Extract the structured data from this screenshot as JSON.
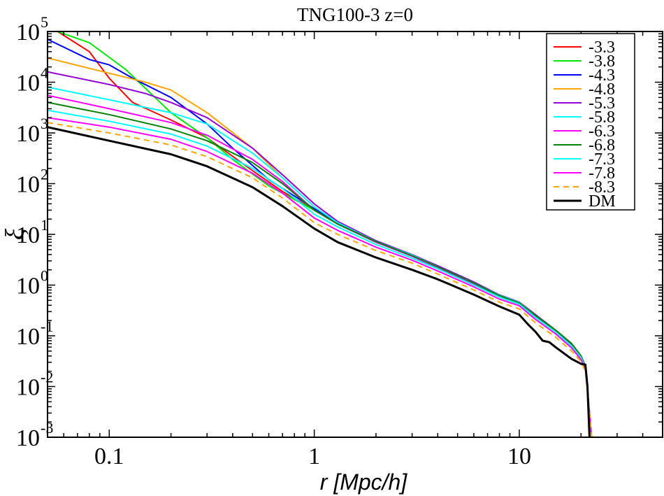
{
  "chart_data": {
    "type": "line",
    "title": "TNG100-3 z=0",
    "xlabel": "r [Mpc/h]",
    "ylabel": "ξ",
    "xscale": "log",
    "yscale": "log",
    "xlim": [
      0.05,
      50
    ],
    "ylim": [
      0.001,
      100000
    ],
    "legend_position": "top-right",
    "x_ticks": [
      {
        "value": 0.1,
        "label": "0.1"
      },
      {
        "value": 1,
        "label": "1"
      },
      {
        "value": 10,
        "label": "10"
      }
    ],
    "y_ticks": [
      {
        "value": 0.001,
        "base": "10",
        "exp": "-3"
      },
      {
        "value": 0.01,
        "base": "10",
        "exp": "-2"
      },
      {
        "value": 0.1,
        "base": "10",
        "exp": "-1"
      },
      {
        "value": 1,
        "base": "10",
        "exp": "0"
      },
      {
        "value": 10,
        "base": "10",
        "exp": "1"
      },
      {
        "value": 100,
        "base": "10",
        "exp": "2"
      },
      {
        "value": 1000,
        "base": "10",
        "exp": "3"
      },
      {
        "value": 10000,
        "base": "10",
        "exp": "4"
      },
      {
        "value": 100000,
        "base": "10",
        "exp": "5"
      }
    ],
    "series": [
      {
        "name": "-3.3",
        "color": "#ff0000",
        "dashed": false,
        "values": [
          [
            0.056,
            100000
          ],
          [
            0.08,
            40000
          ],
          [
            0.1,
            12000
          ],
          [
            0.13,
            4000
          ],
          [
            0.2,
            1800
          ],
          [
            0.3,
            800
          ],
          [
            0.5,
            180
          ],
          [
            0.7,
            70
          ],
          [
            1,
            30
          ],
          [
            1.3,
            16
          ],
          [
            2,
            7
          ],
          [
            3,
            3.8
          ],
          [
            4,
            2.3
          ],
          [
            6,
            1.1
          ],
          [
            8,
            0.62
          ],
          [
            10,
            0.45
          ],
          [
            12,
            0.25
          ],
          [
            15,
            0.13
          ],
          [
            18,
            0.07
          ],
          [
            20,
            0.04
          ],
          [
            21,
            0.025
          ],
          [
            22,
            0.003
          ],
          [
            22.5,
            0.001
          ]
        ]
      },
      {
        "name": "-3.8",
        "color": "#00e600",
        "dashed": false,
        "values": [
          [
            0.056,
            100000
          ],
          [
            0.08,
            60000
          ],
          [
            0.12,
            18000
          ],
          [
            0.2,
            2500
          ],
          [
            0.3,
            800
          ],
          [
            0.4,
            300
          ],
          [
            0.6,
            90
          ],
          [
            1,
            30
          ],
          [
            1.3,
            16
          ],
          [
            2,
            7
          ],
          [
            3,
            3.8
          ],
          [
            4,
            2.3
          ],
          [
            6,
            1.1
          ],
          [
            8,
            0.62
          ],
          [
            10,
            0.45
          ],
          [
            12,
            0.25
          ],
          [
            15,
            0.13
          ],
          [
            18,
            0.07
          ],
          [
            20,
            0.04
          ],
          [
            21,
            0.025
          ],
          [
            22,
            0.003
          ],
          [
            22.5,
            0.001
          ]
        ]
      },
      {
        "name": "-4.3",
        "color": "#0000ff",
        "dashed": false,
        "values": [
          [
            0.05,
            70000
          ],
          [
            0.08,
            28000
          ],
          [
            0.1,
            22000
          ],
          [
            0.13,
            12000
          ],
          [
            0.2,
            5000
          ],
          [
            0.3,
            1500
          ],
          [
            0.4,
            500
          ],
          [
            0.6,
            120
          ],
          [
            1,
            32
          ],
          [
            1.3,
            17
          ],
          [
            2,
            7.2
          ],
          [
            3,
            3.9
          ],
          [
            4,
            2.4
          ],
          [
            6,
            1.15
          ],
          [
            8,
            0.64
          ],
          [
            10,
            0.46
          ],
          [
            12,
            0.26
          ],
          [
            15,
            0.13
          ],
          [
            18,
            0.07
          ],
          [
            20,
            0.04
          ],
          [
            21,
            0.025
          ],
          [
            22,
            0.003
          ],
          [
            22.5,
            0.001
          ]
        ]
      },
      {
        "name": "-4.8",
        "color": "#ffa500",
        "dashed": false,
        "values": [
          [
            0.05,
            30000
          ],
          [
            0.1,
            15000
          ],
          [
            0.15,
            10000
          ],
          [
            0.2,
            7000
          ],
          [
            0.3,
            2500
          ],
          [
            0.5,
            500
          ],
          [
            0.7,
            130
          ],
          [
            1,
            35
          ],
          [
            1.3,
            17
          ],
          [
            2,
            7
          ],
          [
            3,
            3.8
          ],
          [
            4,
            2.3
          ],
          [
            6,
            1.1
          ],
          [
            8,
            0.62
          ],
          [
            10,
            0.45
          ],
          [
            12,
            0.25
          ],
          [
            15,
            0.13
          ],
          [
            18,
            0.07
          ],
          [
            20,
            0.04
          ],
          [
            21,
            0.025
          ],
          [
            22,
            0.003
          ],
          [
            22.5,
            0.001
          ]
        ]
      },
      {
        "name": "-5.3",
        "color": "#9400d3",
        "dashed": false,
        "values": [
          [
            0.05,
            16000
          ],
          [
            0.1,
            9000
          ],
          [
            0.15,
            6000
          ],
          [
            0.2,
            4000
          ],
          [
            0.3,
            2000
          ],
          [
            0.5,
            500
          ],
          [
            0.7,
            150
          ],
          [
            1,
            40
          ],
          [
            1.3,
            18
          ],
          [
            2,
            7.5
          ],
          [
            3,
            4
          ],
          [
            4,
            2.4
          ],
          [
            6,
            1.15
          ],
          [
            8,
            0.64
          ],
          [
            10,
            0.46
          ],
          [
            12,
            0.26
          ],
          [
            15,
            0.13
          ],
          [
            18,
            0.07
          ],
          [
            20,
            0.04
          ],
          [
            21,
            0.025
          ],
          [
            22,
            0.003
          ],
          [
            22.5,
            0.001
          ]
        ]
      },
      {
        "name": "-5.8",
        "color": "#00ffff",
        "dashed": false,
        "values": [
          [
            0.05,
            8000
          ],
          [
            0.1,
            4500
          ],
          [
            0.2,
            2500
          ],
          [
            0.3,
            1500
          ],
          [
            0.5,
            400
          ],
          [
            0.7,
            130
          ],
          [
            1,
            35
          ],
          [
            1.3,
            17
          ],
          [
            2,
            7.2
          ],
          [
            3,
            3.9
          ],
          [
            4,
            2.3
          ],
          [
            6,
            1.1
          ],
          [
            8,
            0.63
          ],
          [
            10,
            0.45
          ],
          [
            12,
            0.25
          ],
          [
            15,
            0.13
          ],
          [
            18,
            0.07
          ],
          [
            20,
            0.04
          ],
          [
            21,
            0.025
          ],
          [
            22,
            0.003
          ],
          [
            22.5,
            0.001
          ]
        ]
      },
      {
        "name": "-6.3",
        "color": "#ff00ff",
        "dashed": false,
        "values": [
          [
            0.05,
            5500
          ],
          [
            0.1,
            3000
          ],
          [
            0.2,
            1600
          ],
          [
            0.3,
            900
          ],
          [
            0.5,
            300
          ],
          [
            0.7,
            110
          ],
          [
            1,
            30
          ],
          [
            1.3,
            16
          ],
          [
            2,
            7
          ],
          [
            3,
            3.7
          ],
          [
            4,
            2.2
          ],
          [
            6,
            1.05
          ],
          [
            8,
            0.6
          ],
          [
            10,
            0.43
          ],
          [
            12,
            0.24
          ],
          [
            15,
            0.125
          ],
          [
            18,
            0.065
          ],
          [
            20,
            0.038
          ],
          [
            21,
            0.024
          ],
          [
            22,
            0.003
          ],
          [
            22.5,
            0.001
          ]
        ]
      },
      {
        "name": "-6.8",
        "color": "#008000",
        "dashed": false,
        "values": [
          [
            0.05,
            4000
          ],
          [
            0.1,
            2300
          ],
          [
            0.2,
            1200
          ],
          [
            0.3,
            700
          ],
          [
            0.5,
            260
          ],
          [
            0.7,
            100
          ],
          [
            1,
            30
          ],
          [
            1.3,
            16
          ],
          [
            2,
            7.2
          ],
          [
            3,
            3.8
          ],
          [
            4,
            2.3
          ],
          [
            6,
            1.1
          ],
          [
            8,
            0.62
          ],
          [
            10,
            0.44
          ],
          [
            12,
            0.25
          ],
          [
            15,
            0.13
          ],
          [
            18,
            0.07
          ],
          [
            20,
            0.04
          ],
          [
            21,
            0.025
          ],
          [
            22,
            0.003
          ],
          [
            22.5,
            0.001
          ]
        ]
      },
      {
        "name": "-7.3",
        "color": "#00ffff",
        "dashed": false,
        "values": [
          [
            0.05,
            2800
          ],
          [
            0.1,
            1700
          ],
          [
            0.2,
            950
          ],
          [
            0.3,
            550
          ],
          [
            0.5,
            200
          ],
          [
            0.7,
            80
          ],
          [
            1,
            25
          ],
          [
            1.3,
            14
          ],
          [
            2,
            6.3
          ],
          [
            3,
            3.4
          ],
          [
            4,
            2.1
          ],
          [
            6,
            1
          ],
          [
            8,
            0.58
          ],
          [
            10,
            0.42
          ],
          [
            12,
            0.23
          ],
          [
            15,
            0.12
          ],
          [
            18,
            0.063
          ],
          [
            20,
            0.037
          ],
          [
            21,
            0.023
          ],
          [
            22,
            0.003
          ],
          [
            22.5,
            0.001
          ]
        ]
      },
      {
        "name": "-7.8",
        "color": "#ff00ff",
        "dashed": false,
        "values": [
          [
            0.05,
            2000
          ],
          [
            0.1,
            1300
          ],
          [
            0.2,
            750
          ],
          [
            0.3,
            430
          ],
          [
            0.5,
            160
          ],
          [
            0.7,
            65
          ],
          [
            1,
            21
          ],
          [
            1.3,
            12
          ],
          [
            2,
            5.6
          ],
          [
            3,
            3.1
          ],
          [
            4,
            1.9
          ],
          [
            6,
            0.92
          ],
          [
            8,
            0.53
          ],
          [
            10,
            0.39
          ],
          [
            12,
            0.21
          ],
          [
            15,
            0.11
          ],
          [
            18,
            0.058
          ],
          [
            20,
            0.034
          ],
          [
            21,
            0.022
          ],
          [
            22,
            0.003
          ],
          [
            22.5,
            0.001
          ]
        ]
      },
      {
        "name": "-8.3",
        "color": "#ffa500",
        "dashed": true,
        "values": [
          [
            0.05,
            1600
          ],
          [
            0.1,
            1000
          ],
          [
            0.2,
            580
          ],
          [
            0.3,
            340
          ],
          [
            0.5,
            130
          ],
          [
            0.7,
            52
          ],
          [
            1,
            17
          ],
          [
            1.3,
            10
          ],
          [
            2,
            4.8
          ],
          [
            3,
            2.7
          ],
          [
            4,
            1.65
          ],
          [
            6,
            0.8
          ],
          [
            8,
            0.46
          ],
          [
            10,
            0.34
          ],
          [
            12,
            0.18
          ],
          [
            15,
            0.095
          ],
          [
            18,
            0.05
          ],
          [
            20,
            0.031
          ],
          [
            21,
            0.02
          ],
          [
            22,
            0.003
          ],
          [
            22.5,
            0.001
          ]
        ]
      },
      {
        "name": "DM",
        "color": "#000000",
        "dashed": false,
        "values": [
          [
            0.05,
            1300
          ],
          [
            0.1,
            700
          ],
          [
            0.2,
            380
          ],
          [
            0.3,
            220
          ],
          [
            0.5,
            85
          ],
          [
            0.7,
            36
          ],
          [
            1,
            13
          ],
          [
            1.3,
            7
          ],
          [
            2,
            3.5
          ],
          [
            3,
            2
          ],
          [
            4,
            1.3
          ],
          [
            6,
            0.65
          ],
          [
            8,
            0.38
          ],
          [
            10,
            0.26
          ],
          [
            11,
            0.17
          ],
          [
            12,
            0.12
          ],
          [
            13,
            0.08
          ],
          [
            14,
            0.075
          ],
          [
            15,
            0.06
          ],
          [
            18,
            0.035
          ],
          [
            20,
            0.028
          ],
          [
            21,
            0.027
          ],
          [
            21.5,
            0.01
          ],
          [
            22,
            0.001
          ]
        ]
      }
    ]
  }
}
